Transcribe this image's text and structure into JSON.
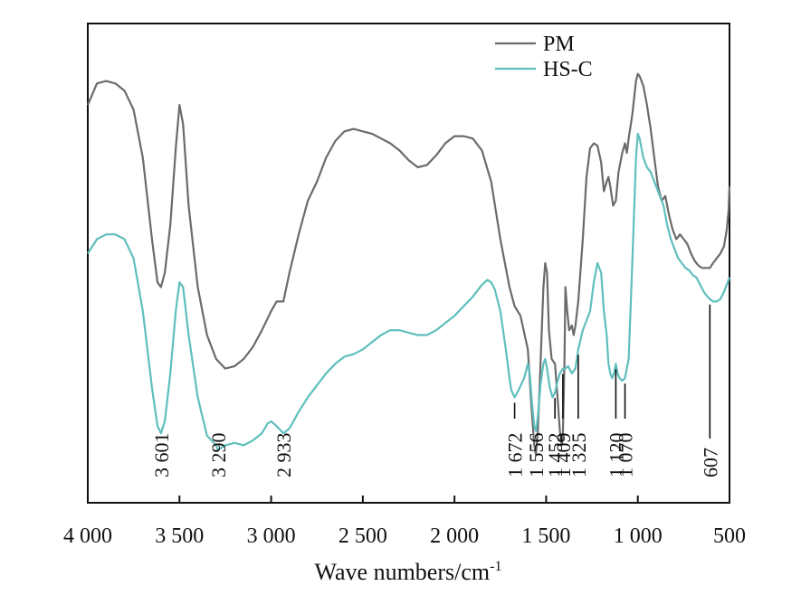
{
  "chart_data": {
    "type": "line",
    "xlabel": "Wave numbers/cm",
    "xlabel_superscript": "-1",
    "xlim": [
      4000,
      500
    ],
    "x_reversed": true,
    "x_ticks": [
      {
        "value": 4000,
        "label": "4 000"
      },
      {
        "value": 3500,
        "label": "3 500"
      },
      {
        "value": 3000,
        "label": "3 000"
      },
      {
        "value": 2500,
        "label": "2 500"
      },
      {
        "value": 2000,
        "label": "2 000"
      },
      {
        "value": 1500,
        "label": "1 500"
      },
      {
        "value": 1000,
        "label": "1 000"
      },
      {
        "value": 500,
        "label": "500"
      }
    ],
    "ylabel": "",
    "ylim": [
      0,
      100
    ],
    "y_ticks_shown": false,
    "grid": false,
    "legend_position": "top-right",
    "series": [
      {
        "name": "PM",
        "color": "#6b6b6b",
        "points": [
          [
            4000,
            83
          ],
          [
            3950,
            87.5
          ],
          [
            3900,
            88
          ],
          [
            3850,
            87.5
          ],
          [
            3800,
            86
          ],
          [
            3750,
            82
          ],
          [
            3700,
            72
          ],
          [
            3650,
            55
          ],
          [
            3620,
            46
          ],
          [
            3601,
            45
          ],
          [
            3580,
            48
          ],
          [
            3550,
            58
          ],
          [
            3520,
            74
          ],
          [
            3500,
            83
          ],
          [
            3480,
            79
          ],
          [
            3450,
            62
          ],
          [
            3400,
            45
          ],
          [
            3350,
            35
          ],
          [
            3300,
            30
          ],
          [
            3250,
            28
          ],
          [
            3200,
            28.5
          ],
          [
            3150,
            30
          ],
          [
            3100,
            32.5
          ],
          [
            3050,
            36
          ],
          [
            3000,
            40
          ],
          [
            2970,
            42
          ],
          [
            2933,
            42
          ],
          [
            2900,
            48
          ],
          [
            2850,
            56
          ],
          [
            2800,
            63
          ],
          [
            2750,
            67
          ],
          [
            2700,
            72
          ],
          [
            2650,
            75.5
          ],
          [
            2600,
            77.5
          ],
          [
            2550,
            78
          ],
          [
            2500,
            77.5
          ],
          [
            2450,
            77
          ],
          [
            2400,
            76
          ],
          [
            2350,
            75
          ],
          [
            2300,
            73.5
          ],
          [
            2250,
            71.5
          ],
          [
            2200,
            70
          ],
          [
            2150,
            70.5
          ],
          [
            2100,
            72.5
          ],
          [
            2050,
            75
          ],
          [
            2000,
            76.5
          ],
          [
            1950,
            76.5
          ],
          [
            1900,
            76
          ],
          [
            1850,
            73.5
          ],
          [
            1800,
            67
          ],
          [
            1750,
            55
          ],
          [
            1700,
            45
          ],
          [
            1672,
            41
          ],
          [
            1640,
            39
          ],
          [
            1600,
            32
          ],
          [
            1580,
            20
          ],
          [
            1565,
            12
          ],
          [
            1556,
            10
          ],
          [
            1545,
            15
          ],
          [
            1530,
            30
          ],
          [
            1515,
            45
          ],
          [
            1505,
            50
          ],
          [
            1495,
            48
          ],
          [
            1485,
            36
          ],
          [
            1470,
            30
          ],
          [
            1452,
            29
          ],
          [
            1440,
            23
          ],
          [
            1425,
            15
          ],
          [
            1415,
            12
          ],
          [
            1409,
            14
          ],
          [
            1400,
            30
          ],
          [
            1395,
            45
          ],
          [
            1385,
            40
          ],
          [
            1375,
            36
          ],
          [
            1360,
            37
          ],
          [
            1350,
            35
          ],
          [
            1340,
            37
          ],
          [
            1325,
            42
          ],
          [
            1300,
            55
          ],
          [
            1280,
            68
          ],
          [
            1260,
            74
          ],
          [
            1240,
            75
          ],
          [
            1220,
            74.5
          ],
          [
            1200,
            71
          ],
          [
            1185,
            65
          ],
          [
            1170,
            67
          ],
          [
            1160,
            68
          ],
          [
            1150,
            66
          ],
          [
            1135,
            62
          ],
          [
            1120,
            63
          ],
          [
            1105,
            69
          ],
          [
            1085,
            73
          ],
          [
            1070,
            75
          ],
          [
            1060,
            73
          ],
          [
            1050,
            76
          ],
          [
            1030,
            81
          ],
          [
            1010,
            88
          ],
          [
            1000,
            89.5
          ],
          [
            990,
            89
          ],
          [
            970,
            87
          ],
          [
            950,
            83
          ],
          [
            930,
            78
          ],
          [
            910,
            72
          ],
          [
            890,
            66
          ],
          [
            870,
            63
          ],
          [
            850,
            64
          ],
          [
            830,
            60
          ],
          [
            810,
            57
          ],
          [
            790,
            55
          ],
          [
            770,
            56
          ],
          [
            750,
            55
          ],
          [
            730,
            54
          ],
          [
            710,
            52
          ],
          [
            690,
            50.5
          ],
          [
            670,
            49.5
          ],
          [
            650,
            49
          ],
          [
            630,
            49
          ],
          [
            607,
            49
          ],
          [
            590,
            50
          ],
          [
            570,
            51
          ],
          [
            550,
            52
          ],
          [
            530,
            53.5
          ],
          [
            515,
            57
          ],
          [
            505,
            61
          ],
          [
            500,
            66
          ]
        ]
      },
      {
        "name": "HS-C",
        "color": "#5fbfbd",
        "points": [
          [
            4000,
            52
          ],
          [
            3950,
            55
          ],
          [
            3900,
            56
          ],
          [
            3850,
            56
          ],
          [
            3800,
            55
          ],
          [
            3750,
            51
          ],
          [
            3700,
            40
          ],
          [
            3650,
            24
          ],
          [
            3620,
            16
          ],
          [
            3601,
            14.5
          ],
          [
            3580,
            17
          ],
          [
            3550,
            27
          ],
          [
            3520,
            40
          ],
          [
            3500,
            46
          ],
          [
            3480,
            45
          ],
          [
            3450,
            35
          ],
          [
            3400,
            22
          ],
          [
            3350,
            14
          ],
          [
            3300,
            12
          ],
          [
            3290,
            11
          ],
          [
            3250,
            12
          ],
          [
            3200,
            12.5
          ],
          [
            3150,
            12
          ],
          [
            3100,
            13
          ],
          [
            3050,
            14.5
          ],
          [
            3020,
            16.5
          ],
          [
            3000,
            17
          ],
          [
            2970,
            16
          ],
          [
            2933,
            14.5
          ],
          [
            2900,
            15.5
          ],
          [
            2850,
            19
          ],
          [
            2800,
            22
          ],
          [
            2750,
            24.5
          ],
          [
            2700,
            27
          ],
          [
            2650,
            29
          ],
          [
            2600,
            30.5
          ],
          [
            2550,
            31
          ],
          [
            2500,
            32
          ],
          [
            2450,
            33.5
          ],
          [
            2400,
            35
          ],
          [
            2350,
            36
          ],
          [
            2300,
            36
          ],
          [
            2250,
            35.5
          ],
          [
            2200,
            35
          ],
          [
            2150,
            35
          ],
          [
            2100,
            36
          ],
          [
            2050,
            37.5
          ],
          [
            2000,
            39
          ],
          [
            1950,
            41
          ],
          [
            1900,
            43
          ],
          [
            1850,
            45.5
          ],
          [
            1820,
            46.5
          ],
          [
            1800,
            46
          ],
          [
            1780,
            44.5
          ],
          [
            1750,
            40
          ],
          [
            1720,
            32
          ],
          [
            1700,
            26
          ],
          [
            1690,
            23.5
          ],
          [
            1672,
            22
          ],
          [
            1650,
            23.5
          ],
          [
            1620,
            26
          ],
          [
            1600,
            29
          ],
          [
            1590,
            27
          ],
          [
            1575,
            20
          ],
          [
            1565,
            16
          ],
          [
            1556,
            15
          ],
          [
            1545,
            18
          ],
          [
            1530,
            25
          ],
          [
            1515,
            29
          ],
          [
            1505,
            30
          ],
          [
            1495,
            28
          ],
          [
            1480,
            24
          ],
          [
            1465,
            22
          ],
          [
            1452,
            23
          ],
          [
            1440,
            25
          ],
          [
            1425,
            27
          ],
          [
            1409,
            28
          ],
          [
            1395,
            28
          ],
          [
            1380,
            28.5
          ],
          [
            1360,
            27
          ],
          [
            1340,
            28
          ],
          [
            1325,
            32
          ],
          [
            1300,
            36
          ],
          [
            1280,
            38
          ],
          [
            1260,
            40
          ],
          [
            1240,
            46
          ],
          [
            1220,
            50
          ],
          [
            1200,
            48
          ],
          [
            1185,
            40
          ],
          [
            1170,
            35
          ],
          [
            1160,
            29
          ],
          [
            1150,
            27
          ],
          [
            1140,
            26
          ],
          [
            1130,
            27
          ],
          [
            1120,
            29
          ],
          [
            1110,
            27
          ],
          [
            1100,
            26
          ],
          [
            1085,
            25.5
          ],
          [
            1070,
            26
          ],
          [
            1050,
            30
          ],
          [
            1030,
            50
          ],
          [
            1010,
            72
          ],
          [
            1000,
            77
          ],
          [
            990,
            76
          ],
          [
            970,
            72
          ],
          [
            950,
            70
          ],
          [
            930,
            69
          ],
          [
            900,
            66
          ],
          [
            880,
            64
          ],
          [
            860,
            62
          ],
          [
            840,
            58
          ],
          [
            820,
            55
          ],
          [
            800,
            53
          ],
          [
            780,
            51
          ],
          [
            760,
            50
          ],
          [
            740,
            49
          ],
          [
            720,
            48.5
          ],
          [
            700,
            47.5
          ],
          [
            680,
            47
          ],
          [
            660,
            45.5
          ],
          [
            640,
            44
          ],
          [
            620,
            43
          ],
          [
            607,
            42.5
          ],
          [
            590,
            42
          ],
          [
            570,
            42
          ],
          [
            550,
            42.5
          ],
          [
            530,
            44
          ],
          [
            510,
            46
          ],
          [
            500,
            47
          ]
        ]
      }
    ],
    "annotations": [
      {
        "label": "3 601",
        "x": 3601,
        "series": "HS-C"
      },
      {
        "label": "3 290",
        "x": 3290,
        "series": "HS-C"
      },
      {
        "label": "2 933",
        "x": 2933,
        "series": "HS-C"
      },
      {
        "label": "1 672",
        "x": 1672,
        "series": "HS-C"
      },
      {
        "label": "1 556",
        "x": 1556,
        "series": "HS-C"
      },
      {
        "label": "1 452",
        "x": 1452,
        "series": "HS-C"
      },
      {
        "label": "1 409",
        "x": 1409,
        "series": "HS-C"
      },
      {
        "label": "1 325",
        "x": 1325,
        "series": "HS-C"
      },
      {
        "label": "1 120",
        "x": 1120,
        "series": "HS-C"
      },
      {
        "label": "1 070",
        "x": 1070,
        "series": "HS-C"
      },
      {
        "label": "607",
        "x": 607,
        "series": "HS-C"
      }
    ]
  }
}
